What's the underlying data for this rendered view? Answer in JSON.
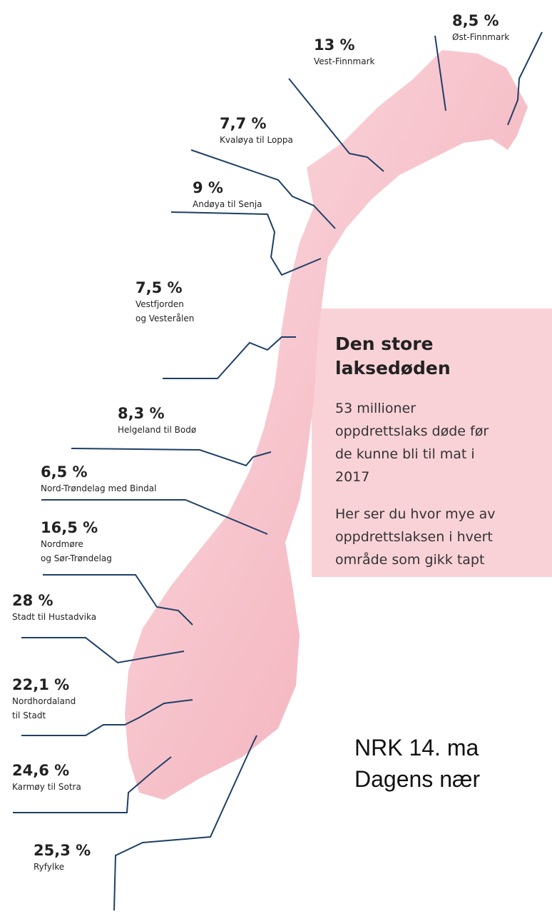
{
  "regions": [
    {
      "percent": "8,5 %",
      "name": [
        "Øst-Finnmark"
      ]
    },
    {
      "percent": "13 %",
      "name": [
        "Vest-Finnmark"
      ]
    },
    {
      "percent": "7,7 %",
      "name": [
        "Kvaløya til Loppa"
      ]
    },
    {
      "percent": "9 %",
      "name": [
        "Andøya til Senja"
      ]
    },
    {
      "percent": "7,5 %",
      "name": [
        "Vestfjorden",
        "og Vesterålen"
      ]
    },
    {
      "percent": "8,3 %",
      "name": [
        "Helgeland til Bodø"
      ]
    },
    {
      "percent": "6,5 %",
      "name": [
        "Nord-Trøndelag med Bindal"
      ]
    },
    {
      "percent": "16,5 %",
      "name": [
        "Nordmøre",
        "og Sør-Trøndelag"
      ]
    },
    {
      "percent": "28 %",
      "name": [
        "Stadt til Hustadvika"
      ]
    },
    {
      "percent": "22,1 %",
      "name": [
        "Nordhordaland",
        "til Stadt"
      ]
    },
    {
      "percent": "24,6 %",
      "name": [
        "Karmøy til Sotra"
      ]
    },
    {
      "percent": "25,3 %",
      "name": [
        "Ryfylke"
      ]
    }
  ],
  "info_box": {
    "title": [
      "Den store",
      "laksedøden"
    ],
    "paragraphs": [
      [
        "53 millioner",
        "oppdrettslaks døde før",
        "de kunne bli til mat i",
        "2017"
      ],
      [
        "Her ser du hvor mye av",
        "oppdrettslaksen i hvert",
        "område som gikk tapt"
      ]
    ]
  },
  "source": [
    "NRK 14. ma",
    "Dagens nær"
  ]
}
